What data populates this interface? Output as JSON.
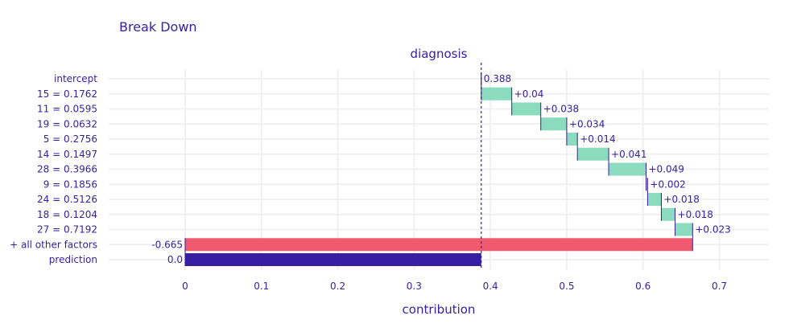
{
  "chart_data": {
    "type": "bar",
    "subtype": "waterfall",
    "title": "Break Down",
    "subtitle": "diagnosis",
    "xlabel": "contribution",
    "ylabel": "",
    "xlim": [
      -0.1,
      0.76
    ],
    "xticks": [
      0,
      0.1,
      0.2,
      0.3,
      0.4,
      0.5,
      0.6,
      0.7
    ],
    "xtick_labels": [
      "0",
      "0.1",
      "0.2",
      "0.3",
      "0.4",
      "0.5",
      "0.6",
      "0.7"
    ],
    "grid": true,
    "reference_line": 0.388,
    "bars": [
      {
        "category": "intercept",
        "start": 0.388,
        "end": 0.388,
        "label": "0.388",
        "kind": "intercept"
      },
      {
        "category": "15 = 0.1762",
        "start": 0.388,
        "end": 0.428,
        "label": "+0.04",
        "kind": "positive"
      },
      {
        "category": "11 = 0.0595",
        "start": 0.428,
        "end": 0.466,
        "label": "+0.038",
        "kind": "positive"
      },
      {
        "category": "19 = 0.0632",
        "start": 0.466,
        "end": 0.5,
        "label": "+0.034",
        "kind": "positive"
      },
      {
        "category": "5 = 0.2756",
        "start": 0.5,
        "end": 0.514,
        "label": "+0.014",
        "kind": "positive"
      },
      {
        "category": "14 = 0.1497",
        "start": 0.514,
        "end": 0.555,
        "label": "+0.041",
        "kind": "positive"
      },
      {
        "category": "28 = 0.3966",
        "start": 0.555,
        "end": 0.604,
        "label": "+0.049",
        "kind": "positive"
      },
      {
        "category": "9 = 0.1856",
        "start": 0.604,
        "end": 0.606,
        "label": "+0.002",
        "kind": "positive"
      },
      {
        "category": "24 = 0.5126",
        "start": 0.606,
        "end": 0.624,
        "label": "+0.018",
        "kind": "positive"
      },
      {
        "category": "18 = 0.1204",
        "start": 0.624,
        "end": 0.642,
        "label": "+0.018",
        "kind": "positive"
      },
      {
        "category": "27 = 0.7192",
        "start": 0.642,
        "end": 0.665,
        "label": "+0.023",
        "kind": "positive"
      },
      {
        "category": "+ all other factors",
        "start": 0.665,
        "end": 0.0,
        "label": "-0.665",
        "kind": "negative"
      },
      {
        "category": "prediction",
        "start": 0.0,
        "end": 0.388,
        "label": "0.0",
        "kind": "prediction"
      }
    ],
    "colors": {
      "positive": "#8bdcbe",
      "negative": "#f05a71",
      "prediction": "#371ea3",
      "text": "#371ea3",
      "grid": "#f0f0f4"
    }
  }
}
